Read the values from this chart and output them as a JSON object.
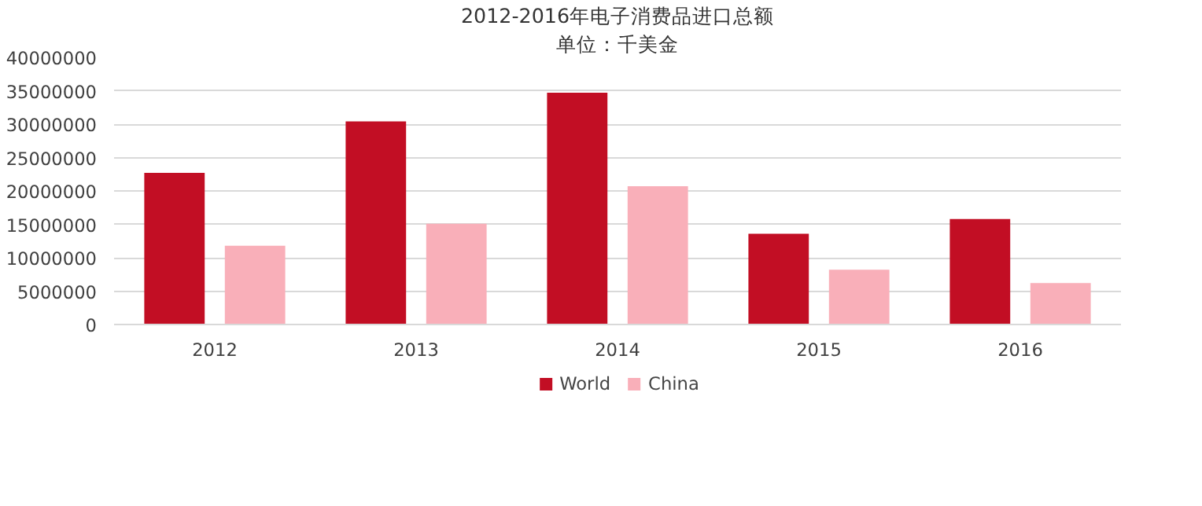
{
  "chart_data": {
    "type": "bar",
    "title": "2012-2016年电子消费品进口总额",
    "subtitle": "单位：千美金",
    "categories": [
      "2012",
      "2013",
      "2014",
      "2015",
      "2016"
    ],
    "series": [
      {
        "name": "World",
        "color": "#c20e24",
        "values": [
          22700000,
          30400000,
          34700000,
          13600000,
          15800000
        ]
      },
      {
        "name": "China",
        "color": "#f9afb9",
        "values": [
          11800000,
          15100000,
          20700000,
          8200000,
          6200000
        ]
      }
    ],
    "ylim": [
      0,
      40000000
    ],
    "yticks": [
      0,
      5000000,
      10000000,
      15000000,
      20000000,
      25000000,
      30000000,
      35000000,
      40000000
    ],
    "grid": "y",
    "legend": "bottom"
  }
}
